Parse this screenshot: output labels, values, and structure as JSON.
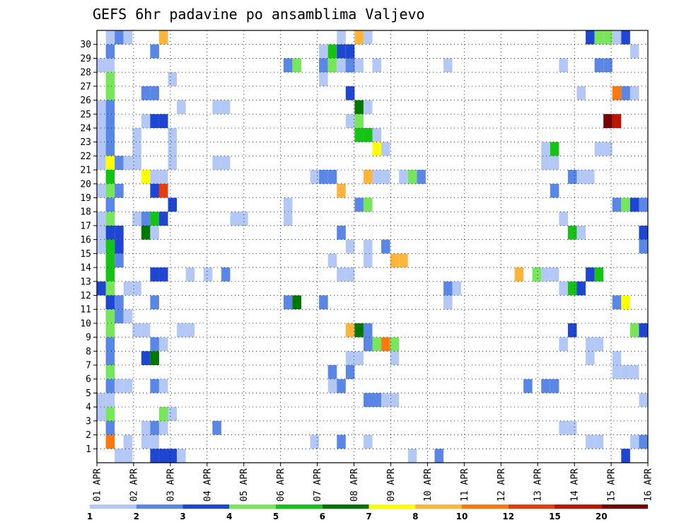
{
  "chart_data": {
    "type": "heatmap",
    "title": "GEFS 6hr padavine po ansamblima Valjevo",
    "xlabel": "",
    "ylabel": "",
    "x_ticks": [
      "01 APR",
      "02 APR",
      "03 APR",
      "04 APR",
      "05 APR",
      "06 APR",
      "07 APR",
      "08 APR",
      "09 APR",
      "10 APR",
      "11 APR",
      "12 APR",
      "13 APR",
      "14 APR",
      "15 APR",
      "16 APR"
    ],
    "y_ticks": [
      "1",
      "2",
      "3",
      "4",
      "5",
      "6",
      "7",
      "8",
      "9",
      "10",
      "11",
      "12",
      "13",
      "14",
      "15",
      "16",
      "17",
      "18",
      "19",
      "20",
      "21",
      "22",
      "23",
      "24",
      "25",
      "26",
      "27",
      "28",
      "29",
      "30"
    ],
    "ylim": [
      0,
      30
    ],
    "grid": true,
    "colorbar": {
      "labels": [
        "1",
        "2",
        "3",
        "4",
        "5",
        "6",
        "7",
        "8",
        "10",
        "12",
        "15",
        "20"
      ],
      "colors": [
        "#b4c8f5",
        "#5a87e6",
        "#1e46d2",
        "#78e65a",
        "#14c314",
        "#007800",
        "#ffff00",
        "#ffb43c",
        "#ff780f",
        "#e63c0f",
        "#be1400",
        "#780000"
      ]
    },
    "cells": [
      [
        1,
        30,
        1
      ],
      [
        1,
        29,
        2
      ],
      [
        1,
        28,
        1
      ],
      [
        1,
        27,
        4
      ],
      [
        1,
        26,
        4
      ],
      [
        1,
        25,
        2
      ],
      [
        1,
        24,
        2
      ],
      [
        1,
        23,
        2
      ],
      [
        1,
        22,
        2
      ],
      [
        1,
        21,
        7
      ],
      [
        1,
        20,
        5
      ],
      [
        1,
        19,
        4
      ],
      [
        1,
        18,
        2
      ],
      [
        1,
        17,
        4
      ],
      [
        1,
        16,
        3
      ],
      [
        1,
        15,
        5
      ],
      [
        1,
        14,
        5
      ],
      [
        1,
        13,
        5
      ],
      [
        1,
        12,
        4
      ],
      [
        1,
        11,
        3
      ],
      [
        1,
        10,
        4
      ],
      [
        1,
        9,
        4
      ],
      [
        1,
        8,
        2
      ],
      [
        1,
        7,
        2
      ],
      [
        1,
        6,
        4
      ],
      [
        1,
        5,
        2
      ],
      [
        1,
        4,
        1
      ],
      [
        1,
        3,
        4
      ],
      [
        1,
        2,
        2
      ],
      [
        1,
        1,
        9
      ],
      [
        0,
        28,
        1
      ],
      [
        0,
        25,
        1
      ],
      [
        0,
        24,
        1
      ],
      [
        0,
        23,
        1
      ],
      [
        0,
        22,
        1
      ],
      [
        0,
        21,
        1
      ],
      [
        0,
        19,
        1
      ],
      [
        0,
        17,
        1
      ],
      [
        0,
        16,
        1
      ],
      [
        0,
        15,
        1
      ],
      [
        0,
        12,
        3
      ],
      [
        0,
        4,
        1
      ],
      [
        0,
        3,
        1
      ],
      [
        2,
        30,
        2
      ],
      [
        3,
        30,
        1
      ],
      [
        2,
        21,
        2
      ],
      [
        3,
        21,
        1
      ],
      [
        2,
        19,
        2
      ],
      [
        2,
        16,
        3
      ],
      [
        2,
        15,
        3
      ],
      [
        2,
        14,
        2
      ],
      [
        2,
        11,
        2
      ],
      [
        2,
        10,
        2
      ],
      [
        3,
        10,
        1
      ],
      [
        2,
        5,
        1
      ],
      [
        3,
        5,
        1
      ],
      [
        2,
        0,
        1
      ],
      [
        3,
        0,
        1
      ],
      [
        4,
        23,
        1
      ],
      [
        4,
        22,
        1
      ],
      [
        4,
        21,
        1
      ],
      [
        3,
        12,
        1
      ],
      [
        4,
        12,
        1
      ],
      [
        4,
        9,
        1
      ],
      [
        5,
        9,
        1
      ],
      [
        3,
        1,
        1
      ],
      [
        5,
        26,
        2
      ],
      [
        6,
        26,
        2
      ],
      [
        5,
        24,
        1
      ],
      [
        6,
        24,
        3
      ],
      [
        7,
        24,
        3
      ],
      [
        5,
        20,
        7
      ],
      [
        6,
        20,
        1
      ],
      [
        7,
        20,
        1
      ],
      [
        6,
        19,
        3
      ],
      [
        7,
        19,
        10
      ],
      [
        4,
        17,
        1
      ],
      [
        5,
        17,
        2
      ],
      [
        6,
        17,
        5
      ],
      [
        7,
        17,
        3
      ],
      [
        5,
        16,
        6
      ],
      [
        6,
        16,
        1
      ],
      [
        6,
        13,
        3
      ],
      [
        7,
        13,
        3
      ],
      [
        6,
        11,
        2
      ],
      [
        6,
        8,
        2
      ],
      [
        7,
        8,
        1
      ],
      [
        5,
        7,
        3
      ],
      [
        6,
        7,
        6
      ],
      [
        6,
        5,
        2
      ],
      [
        7,
        5,
        1
      ],
      [
        5,
        2,
        1
      ],
      [
        6,
        2,
        2
      ],
      [
        5,
        1,
        1
      ],
      [
        6,
        1,
        1
      ],
      [
        6,
        0,
        3
      ],
      [
        7,
        0,
        3
      ],
      [
        8,
        0,
        3
      ],
      [
        7,
        30,
        8
      ],
      [
        6,
        29,
        2
      ],
      [
        8,
        27,
        1
      ],
      [
        8,
        18,
        3
      ],
      [
        8,
        23,
        1
      ],
      [
        8,
        22,
        1
      ],
      [
        8,
        21,
        1
      ],
      [
        7,
        2,
        1
      ],
      [
        7,
        3,
        4
      ],
      [
        8,
        3,
        1
      ],
      [
        9,
        25,
        1
      ],
      [
        10,
        13,
        1
      ],
      [
        9,
        9,
        1
      ],
      [
        10,
        9,
        1
      ],
      [
        9,
        0,
        1
      ],
      [
        13,
        25,
        1
      ],
      [
        14,
        25,
        1
      ],
      [
        13,
        21,
        1
      ],
      [
        14,
        21,
        1
      ],
      [
        14,
        13,
        2
      ],
      [
        12,
        13,
        1
      ],
      [
        15,
        17,
        1
      ],
      [
        16,
        17,
        1
      ],
      [
        13,
        2,
        2
      ],
      [
        25,
        29,
        1
      ],
      [
        26,
        29,
        5
      ],
      [
        27,
        29,
        3
      ],
      [
        25,
        28,
        2
      ],
      [
        26,
        28,
        4
      ],
      [
        27,
        28,
        1
      ],
      [
        25,
        27,
        1
      ],
      [
        21,
        18,
        1
      ],
      [
        21,
        17,
        1
      ],
      [
        21,
        28,
        2
      ],
      [
        22,
        28,
        4
      ],
      [
        21,
        11,
        2
      ],
      [
        22,
        11,
        6
      ],
      [
        25,
        11,
        2
      ],
      [
        27,
        30,
        1
      ],
      [
        29,
        30,
        8
      ],
      [
        30,
        30,
        1
      ],
      [
        28,
        29,
        3
      ],
      [
        28,
        28,
        6
      ],
      [
        28,
        28,
        2
      ],
      [
        29,
        28,
        1
      ],
      [
        31,
        28,
        1
      ],
      [
        28,
        26,
        3
      ],
      [
        29,
        25,
        6
      ],
      [
        30,
        25,
        1
      ],
      [
        28,
        24,
        1
      ],
      [
        29,
        24,
        4
      ],
      [
        29,
        23,
        5
      ],
      [
        30,
        23,
        5
      ],
      [
        31,
        23,
        14
      ],
      [
        31,
        22,
        7
      ],
      [
        32,
        22,
        1
      ],
      [
        24,
        20,
        1
      ],
      [
        25,
        20,
        2
      ],
      [
        26,
        20,
        2
      ],
      [
        30,
        20,
        8
      ],
      [
        31,
        20,
        1
      ],
      [
        32,
        20,
        1
      ],
      [
        34,
        20,
        1
      ],
      [
        35,
        20,
        4
      ],
      [
        36,
        20,
        2
      ],
      [
        27,
        19,
        8
      ],
      [
        29,
        18,
        2
      ],
      [
        30,
        18,
        4
      ],
      [
        27,
        16,
        2
      ],
      [
        28,
        15,
        1
      ],
      [
        30,
        15,
        1
      ],
      [
        32,
        15,
        2
      ],
      [
        26,
        14,
        1
      ],
      [
        30,
        14,
        1
      ],
      [
        33,
        14,
        8
      ],
      [
        34,
        14,
        8
      ],
      [
        27,
        13,
        1
      ],
      [
        28,
        13,
        1
      ],
      [
        28,
        9,
        8
      ],
      [
        29,
        9,
        6
      ],
      [
        30,
        9,
        2
      ],
      [
        30,
        8,
        2
      ],
      [
        31,
        8,
        4
      ],
      [
        32,
        8,
        9
      ],
      [
        33,
        8,
        4
      ],
      [
        28,
        7,
        1
      ],
      [
        29,
        7,
        1
      ],
      [
        33,
        7,
        1
      ],
      [
        26,
        6,
        2
      ],
      [
        28,
        6,
        2
      ],
      [
        26,
        5,
        1
      ],
      [
        27,
        5,
        2
      ],
      [
        30,
        4,
        2
      ],
      [
        31,
        4,
        2
      ],
      [
        32,
        4,
        1
      ],
      [
        33,
        4,
        1
      ],
      [
        24,
        1,
        1
      ],
      [
        27,
        1,
        2
      ],
      [
        30,
        1,
        1
      ],
      [
        35,
        0,
        1
      ],
      [
        38,
        0,
        2
      ],
      [
        39,
        12,
        2
      ],
      [
        40,
        12,
        1
      ],
      [
        39,
        11,
        1
      ],
      [
        39,
        28,
        1
      ],
      [
        48,
        5,
        2
      ],
      [
        50,
        5,
        2
      ],
      [
        51,
        5,
        2
      ],
      [
        50,
        22,
        1
      ],
      [
        51,
        22,
        5
      ],
      [
        50,
        21,
        1
      ],
      [
        51,
        21,
        1
      ],
      [
        51,
        19,
        2
      ],
      [
        52,
        17,
        1
      ],
      [
        47,
        13,
        8
      ],
      [
        49,
        13,
        4
      ],
      [
        50,
        13,
        1
      ],
      [
        51,
        13,
        1
      ],
      [
        52,
        28,
        1
      ],
      [
        54,
        26,
        1
      ],
      [
        53,
        20,
        2
      ],
      [
        54,
        20,
        1
      ],
      [
        55,
        20,
        1
      ],
      [
        53,
        16,
        5
      ],
      [
        54,
        16,
        1
      ],
      [
        52,
        12,
        1
      ],
      [
        53,
        12,
        5
      ],
      [
        54,
        12,
        3
      ],
      [
        53,
        9,
        3
      ],
      [
        55,
        13,
        3
      ],
      [
        56,
        13,
        5
      ],
      [
        56,
        22,
        1
      ],
      [
        52,
        8,
        1
      ],
      [
        55,
        8,
        1
      ],
      [
        56,
        8,
        1
      ],
      [
        55,
        7,
        1
      ],
      [
        52,
        2,
        1
      ],
      [
        53,
        2,
        1
      ],
      [
        55,
        1,
        1
      ],
      [
        56,
        1,
        1
      ],
      [
        55,
        30,
        3
      ],
      [
        56,
        30,
        4
      ],
      [
        57,
        30,
        4
      ],
      [
        58,
        30,
        1
      ],
      [
        59,
        30,
        3
      ],
      [
        56,
        28,
        2
      ],
      [
        57,
        28,
        2
      ],
      [
        60,
        29,
        1
      ],
      [
        60,
        26,
        1
      ],
      [
        59,
        26,
        2
      ],
      [
        58,
        26,
        9
      ],
      [
        58,
        24,
        11
      ],
      [
        57,
        24,
        12
      ],
      [
        57,
        22,
        1
      ],
      [
        58,
        18,
        2
      ],
      [
        59,
        18,
        4
      ],
      [
        60,
        18,
        3
      ],
      [
        61,
        18,
        2
      ],
      [
        58,
        11,
        2
      ],
      [
        59,
        11,
        7
      ],
      [
        60,
        9,
        4
      ],
      [
        61,
        9,
        3
      ],
      [
        58,
        7,
        1
      ],
      [
        58,
        6,
        1
      ],
      [
        59,
        6,
        1
      ],
      [
        60,
        6,
        1
      ],
      [
        61,
        4,
        1
      ],
      [
        60,
        1,
        1
      ],
      [
        61,
        1,
        2
      ],
      [
        59,
        0,
        3
      ],
      [
        61,
        16,
        3
      ],
      [
        61,
        15,
        2
      ]
    ]
  }
}
